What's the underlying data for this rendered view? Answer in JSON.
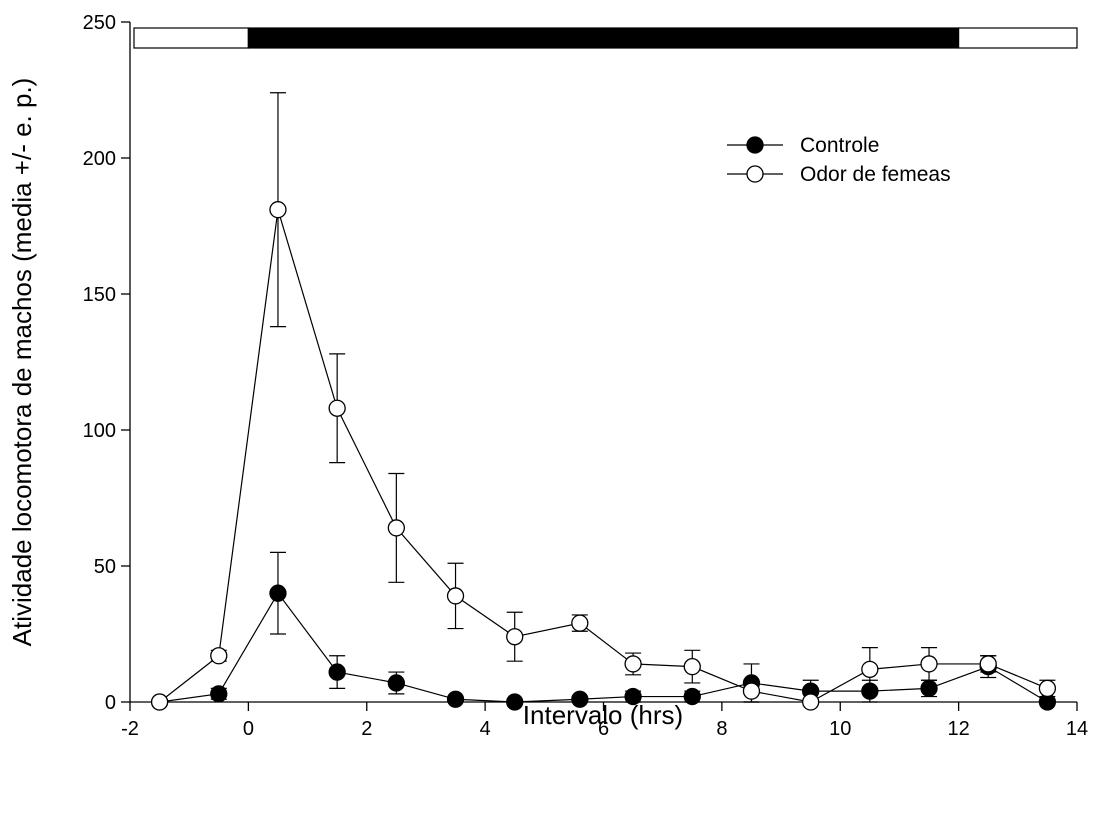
{
  "chart_data": {
    "type": "line",
    "xlabel": "Intervalo (hrs)",
    "ylabel": "Atividade locomotora de machos (media +/- e. p.)",
    "xlim": [
      -2,
      14
    ],
    "ylim": [
      0,
      250
    ],
    "x_ticks": [
      -2,
      0,
      2,
      4,
      6,
      8,
      10,
      12,
      14
    ],
    "y_ticks": [
      0,
      50,
      100,
      150,
      200,
      250
    ],
    "x_tick_labels": [
      "-2",
      "0",
      "2",
      "4",
      "6",
      "8",
      "10",
      "12",
      "14"
    ],
    "y_tick_labels": [
      "0",
      "50",
      "100",
      "150",
      "200",
      "250"
    ],
    "grid": false,
    "legend_position": "top-right",
    "light_dark_bar": [
      {
        "phase": "light",
        "start": -2,
        "end": 0,
        "color": "#ffffff"
      },
      {
        "phase": "dark",
        "start": 0,
        "end": 12,
        "color": "#000000"
      },
      {
        "phase": "light",
        "start": 12,
        "end": 14,
        "color": "#ffffff"
      }
    ],
    "series": [
      {
        "name": "Controle",
        "marker": "filled-circle",
        "x": [
          -1.5,
          -0.5,
          0.5,
          1.5,
          2.5,
          3.5,
          4.5,
          5.6,
          6.5,
          7.5,
          8.5,
          9.5,
          10.5,
          11.5,
          12.5,
          13.5
        ],
        "y": [
          0,
          3,
          40,
          11,
          7,
          1,
          0,
          1,
          2,
          2,
          7,
          4,
          4,
          5,
          13,
          0
        ],
        "error": [
          0,
          2,
          15,
          6,
          4,
          1,
          1,
          1,
          2,
          2,
          7,
          4,
          4,
          3,
          4,
          1
        ]
      },
      {
        "name": "Odor de femeas",
        "marker": "open-circle",
        "x": [
          -1.5,
          -0.5,
          0.5,
          1.5,
          2.5,
          3.5,
          4.5,
          5.6,
          6.5,
          7.5,
          8.5,
          9.5,
          10.5,
          11.5,
          12.5,
          13.5
        ],
        "y": [
          0,
          17,
          181,
          108,
          64,
          39,
          24,
          29,
          14,
          13,
          4,
          0,
          12,
          14,
          14,
          5
        ],
        "error": [
          0,
          2,
          43,
          20,
          20,
          12,
          9,
          3,
          4,
          6,
          4,
          1,
          8,
          6,
          3,
          3
        ]
      }
    ]
  }
}
